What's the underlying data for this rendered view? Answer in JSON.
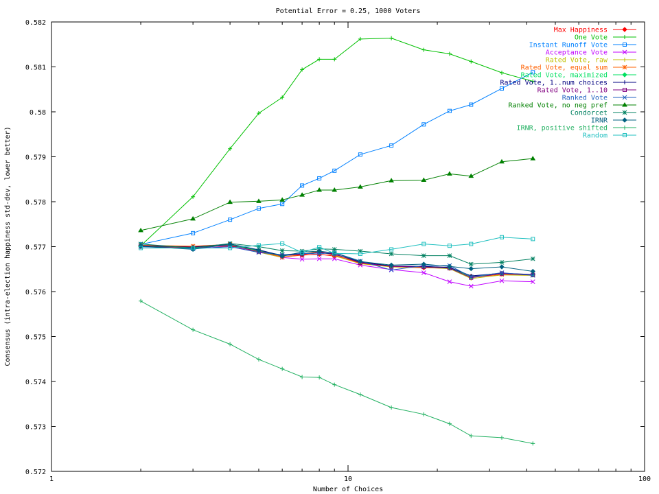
{
  "chart_data": {
    "type": "line",
    "title": "Potential Error = 0.25, 1000 Voters",
    "xlabel": "Number of Choices",
    "ylabel": "Consensus (intra-election happiness std-dev, lower better)",
    "xscale": "log",
    "xlim": [
      1,
      100
    ],
    "ylim": [
      0.572,
      0.582
    ],
    "x_ticks": [
      1,
      10,
      100
    ],
    "x_tick_labels": [
      "1",
      "10",
      "100"
    ],
    "y_ticks": [
      0.572,
      0.573,
      0.574,
      0.575,
      0.576,
      0.577,
      0.578,
      0.579,
      0.58,
      0.581,
      0.582
    ],
    "y_tick_labels": [
      "0.572",
      "0.573",
      "0.574",
      "0.575",
      "0.576",
      "0.577",
      "0.578",
      "0.579",
      "0.58",
      "0.581",
      "0.582"
    ],
    "grid": false,
    "legend_position": "top-right",
    "x": [
      2,
      3,
      4,
      5,
      6,
      7,
      8,
      9,
      11,
      14,
      18,
      22,
      26,
      33,
      42
    ],
    "series": [
      {
        "name": "Max Happiness",
        "color": "#ff0000",
        "marker": "diamond",
        "values": [
          0.57703,
          0.577,
          0.57701,
          0.57691,
          0.57677,
          0.57681,
          0.57683,
          0.57679,
          0.57665,
          0.57655,
          0.57653,
          0.57652,
          0.57634,
          0.5764,
          0.57638
        ]
      },
      {
        "name": "One Vote",
        "color": "#00c000",
        "marker": "plus",
        "values": [
          0.57702,
          0.57811,
          0.57918,
          0.57997,
          0.58032,
          0.58094,
          0.58117,
          0.58117,
          0.58162,
          0.58164,
          0.58138,
          0.58129,
          0.58112,
          0.58087,
          0.58068
        ]
      },
      {
        "name": "Instant Runoff Vote",
        "color": "#0080ff",
        "marker": "square",
        "values": [
          0.57705,
          0.5773,
          0.5776,
          0.57785,
          0.57795,
          0.57836,
          0.57852,
          0.57869,
          0.57905,
          0.57925,
          0.57972,
          0.58002,
          0.58016,
          0.58052,
          0.58088
        ]
      },
      {
        "name": "Acceptance Vote",
        "color": "#c000ff",
        "marker": "x",
        "values": [
          0.57702,
          0.57696,
          0.577,
          0.57688,
          0.57676,
          0.57672,
          0.57673,
          0.57673,
          0.57659,
          0.57649,
          0.57642,
          0.57622,
          0.57612,
          0.57624,
          0.57622
        ]
      },
      {
        "name": "Rated Vote, raw",
        "color": "#c0c000",
        "marker": "plus",
        "values": [
          0.57701,
          0.57698,
          0.57704,
          0.57688,
          0.57676,
          0.57683,
          0.5769,
          0.5768,
          0.57662,
          0.57655,
          0.57654,
          0.57651,
          0.57629,
          0.57637,
          0.57636
        ]
      },
      {
        "name": "Rated Vote, equal sum",
        "color": "#ff6000",
        "marker": "asterisk",
        "values": [
          0.57703,
          0.57701,
          0.57705,
          0.5769,
          0.57677,
          0.57682,
          0.57688,
          0.57681,
          0.57663,
          0.57656,
          0.57655,
          0.57653,
          0.57632,
          0.57638,
          0.57637
        ]
      },
      {
        "name": "Rated Vote, maximized",
        "color": "#00e060",
        "marker": "diamond",
        "values": [
          0.577,
          0.57697,
          0.57704,
          0.57691,
          0.57681,
          0.57684,
          0.57687,
          0.57683,
          0.57667,
          0.57657,
          0.57656,
          0.57653,
          0.57633,
          0.5764,
          0.57637
        ]
      },
      {
        "name": "Rated Vote, 1..num choices",
        "color": "#000080",
        "marker": "plus",
        "values": [
          0.57702,
          0.57699,
          0.57706,
          0.57693,
          0.5768,
          0.57684,
          0.57687,
          0.57683,
          0.57666,
          0.57657,
          0.57656,
          0.57654,
          0.57635,
          0.57641,
          0.57638
        ]
      },
      {
        "name": "Rated Vote, 1..10",
        "color": "#800080",
        "marker": "square",
        "values": [
          0.577,
          0.57697,
          0.57703,
          0.57689,
          0.5768,
          0.57683,
          0.57688,
          0.57684,
          0.57664,
          0.57656,
          0.57655,
          0.57652,
          0.57631,
          0.5764,
          0.57637
        ]
      },
      {
        "name": "Ranked Vote",
        "color": "#2060c0",
        "marker": "x",
        "values": [
          0.577,
          0.57695,
          0.577,
          0.57687,
          0.57682,
          0.57685,
          0.57684,
          0.57687,
          0.57668,
          0.57648,
          0.57658,
          0.57658,
          0.57633,
          0.57642,
          0.57636
        ]
      },
      {
        "name": "Ranked Vote, no neg pref",
        "color": "#008000",
        "marker": "triangle",
        "values": [
          0.57736,
          0.57762,
          0.57799,
          0.57801,
          0.57804,
          0.57815,
          0.57826,
          0.57826,
          0.57833,
          0.57847,
          0.57848,
          0.57862,
          0.57857,
          0.57889,
          0.57896
        ]
      },
      {
        "name": "Condorcet",
        "color": "#008060",
        "marker": "asterisk",
        "values": [
          0.57706,
          0.57697,
          0.57707,
          0.577,
          0.57691,
          0.5769,
          0.57695,
          0.57694,
          0.5769,
          0.57684,
          0.5768,
          0.5768,
          0.57661,
          0.57665,
          0.57673
        ]
      },
      {
        "name": "IRNR",
        "color": "#006080",
        "marker": "diamond",
        "values": [
          0.57701,
          0.57694,
          0.57706,
          0.57692,
          0.57679,
          0.57688,
          0.5769,
          0.57686,
          0.57667,
          0.57659,
          0.57661,
          0.57656,
          0.57651,
          0.57655,
          0.57645
        ]
      },
      {
        "name": "IRNR, positive shifted",
        "color": "#20b060",
        "marker": "plus",
        "values": [
          0.57579,
          0.57515,
          0.57483,
          0.57449,
          0.57428,
          0.5741,
          0.57409,
          0.57393,
          0.57371,
          0.57342,
          0.57327,
          0.57306,
          0.57279,
          0.57275,
          0.57262
        ]
      },
      {
        "name": "Random",
        "color": "#20c0c0",
        "marker": "square",
        "values": [
          0.57697,
          0.57697,
          0.57697,
          0.57703,
          0.57707,
          0.57687,
          0.57699,
          0.57685,
          0.57684,
          0.57694,
          0.57706,
          0.57702,
          0.57706,
          0.57721,
          0.57717
        ]
      }
    ]
  }
}
